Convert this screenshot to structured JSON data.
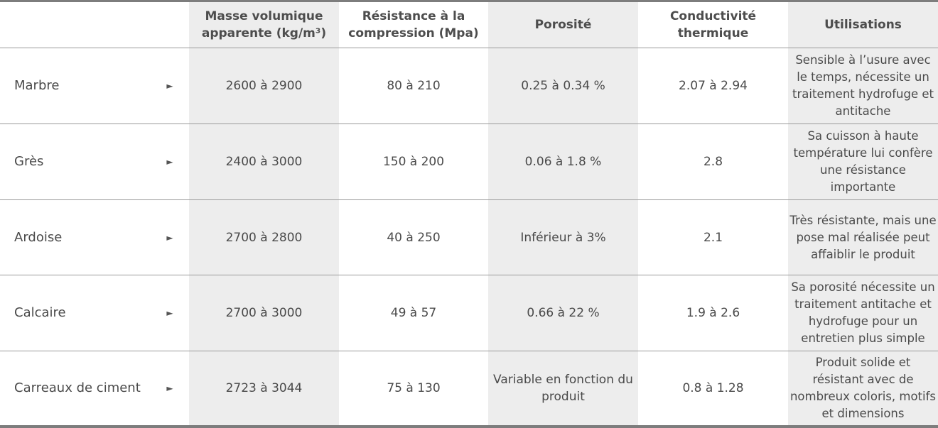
{
  "columns": [
    "",
    "Masse volumique apparente (kg/m³)",
    "Résistance à la compression (Mpa)",
    "Porosité",
    "Conductivité thermique",
    "Utilisations"
  ],
  "rows": [
    {
      "name": "Marbre",
      "masse": "2600 à 2900",
      "resistance": "80 à 210",
      "porosite": "0.25 à 0.34 %",
      "conductivite": "2.07 à 2.94",
      "utilisations": "Sensible à l’usure avec le temps, nécessite un traitement hydrofuge et antitache"
    },
    {
      "name": "Grès",
      "masse": "2400 à 3000",
      "resistance": "150 à 200",
      "porosite": "0.06 à 1.8 %",
      "conductivite": "2.8",
      "utilisations": "Sa cuisson à haute température lui confère une résistance importante"
    },
    {
      "name": "Ardoise",
      "masse": "2700 à 2800",
      "resistance": "40 à 250",
      "porosite": "Inférieur à 3%",
      "conductivite": "2.1",
      "utilisations": "Très résistante, mais une pose mal réalisée peut affaiblir le produit"
    },
    {
      "name": "Calcaire",
      "masse": "2700 à 3000",
      "resistance": "49 à 57",
      "porosite": "0.66 à 22 %",
      "conductivite": "1.9 à 2.6",
      "utilisations": "Sa porosité nécessite un traitement antitache et hydrofuge pour un entretien plus simple"
    },
    {
      "name": "Carreaux de ciment",
      "masse": "2723 à 3044",
      "resistance": "75 à 130",
      "porosite": "Variable en fonction du produit",
      "conductivite": "0.8 à 1.28",
      "utilisations": "Produit solide et résistant avec de nombreux coloris, motifs et dimensions"
    }
  ],
  "row_expand_glyph": "►",
  "icons": {
    "row_expand": "triangle-right-icon"
  },
  "colors": {
    "border": "#7d7d7d",
    "row_divider": "#9a9a9a",
    "shaded_column": "#ededed",
    "text": "#4a4a4a"
  }
}
